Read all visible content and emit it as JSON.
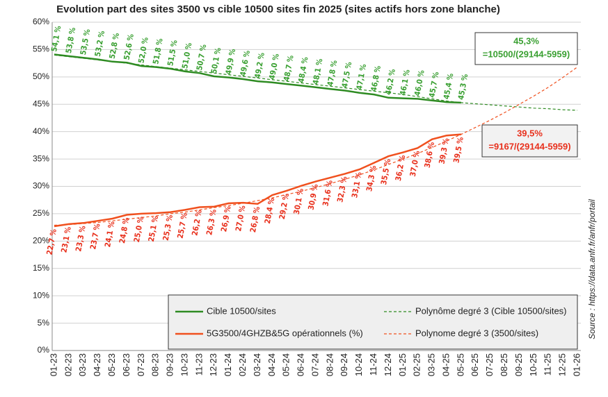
{
  "chart_data": {
    "type": "line",
    "title": "Evolution part des sites 3500 vs cible 10500 sites fin 2025 (sites actifs hors zone blanche)",
    "categories": [
      "01-23",
      "02-23",
      "03-23",
      "04-23",
      "05-23",
      "06-23",
      "07-23",
      "08-23",
      "09-23",
      "10-23",
      "11-23",
      "12-23",
      "01-24",
      "02-24",
      "03-24",
      "04-24",
      "05-24",
      "06-24",
      "07-24",
      "08-24",
      "09-24",
      "10-24",
      "11-24",
      "12-24",
      "01-25",
      "02-25",
      "03-25",
      "04-25",
      "05-25",
      "06-25",
      "07-25",
      "08-25",
      "09-25",
      "10-25",
      "11-25",
      "12-25",
      "01-26"
    ],
    "ylim": [
      0,
      60
    ],
    "yticks": [
      {
        "value": 0,
        "label": "0%"
      },
      {
        "value": 5,
        "label": "5%"
      },
      {
        "value": 10,
        "label": "10%"
      },
      {
        "value": 15,
        "label": "15%"
      },
      {
        "value": 20,
        "label": "20%"
      },
      {
        "value": 25,
        "label": "25%"
      },
      {
        "value": 30,
        "label": "30%"
      },
      {
        "value": 35,
        "label": "35%"
      },
      {
        "value": 40,
        "label": "40%"
      },
      {
        "value": 45,
        "label": "45%"
      },
      {
        "value": 50,
        "label": "50%"
      },
      {
        "value": 55,
        "label": "55%"
      },
      {
        "value": 60,
        "label": "60%"
      }
    ],
    "grid": true,
    "legend": "lower right",
    "series": [
      {
        "name": "Cible 10500/sites",
        "color": "#2e8b22",
        "label_color": "#3aa032",
        "dashed": false,
        "label_side": "above",
        "values": [
          54.1,
          53.8,
          53.5,
          53.2,
          52.8,
          52.6,
          52.0,
          51.8,
          51.5,
          51.0,
          50.7,
          50.1,
          49.9,
          49.6,
          49.2,
          49.0,
          48.7,
          48.4,
          48.1,
          47.8,
          47.5,
          47.1,
          46.8,
          46.2,
          46.1,
          46.0,
          45.7,
          45.4,
          45.3,
          null,
          null,
          null,
          null,
          null,
          null,
          null,
          null
        ],
        "value_labels": [
          "54,1 %",
          "53,8 %",
          "53,5 %",
          "53,2 %",
          "52,8 %",
          "52,6 %",
          "52,0 %",
          "51,8 %",
          "51,5 %",
          "51,0 %",
          "50,7 %",
          "50,1 %",
          "49,9 %",
          "49,6 %",
          "49,2 %",
          "49,0 %",
          "48,7 %",
          "48,4 %",
          "48,1 %",
          "47,8 %",
          "47,5 %",
          "47,1 %",
          "46,8 %",
          "46,2 %",
          "46,1 %",
          "46,0 %",
          "45,7 %",
          "45,4 %",
          "45,3 %",
          null,
          null,
          null,
          null,
          null,
          null,
          null,
          null
        ]
      },
      {
        "name": "5G3500/4GHZB&5G opérationnels (%)",
        "color": "#f0501e",
        "label_color": "#e8301c",
        "dashed": false,
        "label_side": "below",
        "values": [
          22.7,
          23.1,
          23.3,
          23.7,
          24.1,
          24.8,
          25.0,
          25.1,
          25.3,
          25.7,
          26.2,
          26.3,
          26.9,
          27.0,
          26.8,
          28.4,
          29.2,
          30.1,
          30.9,
          31.6,
          32.3,
          33.1,
          34.3,
          35.5,
          36.2,
          37.0,
          38.6,
          39.3,
          39.5,
          null,
          null,
          null,
          null,
          null,
          null,
          null,
          null
        ],
        "value_labels": [
          "22,7 %",
          "23,1 %",
          "23,3 %",
          "23,7 %",
          "24,1 %",
          "24,8 %",
          "25,0 %",
          "25,1 %",
          "25,3 %",
          "25,7 %",
          "26,2 %",
          "26,3 %",
          "26,9 %",
          "27,0 %",
          "26,8 %",
          "28,4 %",
          "29,2 %",
          "30,1 %",
          "30,9 %",
          "31,6 %",
          "32,3 %",
          "33,1 %",
          "34,3 %",
          "35,5 %",
          "36,2 %",
          "37,0 %",
          "38,6 %",
          "39,3 %",
          "39,5 %",
          null,
          null,
          null,
          null,
          null,
          null,
          null,
          null
        ]
      },
      {
        "name": "Polynôme degré 3 (Cible 10500/sites)",
        "color": "#2e8b22",
        "dashed": true,
        "values": [
          54.0,
          53.7,
          53.4,
          53.1,
          52.8,
          52.5,
          52.2,
          51.9,
          51.6,
          51.3,
          51.0,
          50.7,
          50.4,
          50.1,
          49.8,
          49.5,
          49.2,
          48.9,
          48.6,
          48.3,
          48.0,
          47.7,
          47.4,
          47.1,
          46.8,
          46.4,
          46.0,
          45.6,
          45.3,
          45.1,
          44.9,
          44.7,
          44.5,
          44.3,
          44.2,
          44.0,
          43.9
        ]
      },
      {
        "name": "Polynome degré 3 (3500/sites)",
        "color": "#f0501e",
        "dashed": true,
        "values": [
          22.9,
          23.0,
          23.2,
          23.4,
          23.7,
          24.0,
          24.3,
          24.6,
          25.0,
          25.3,
          25.7,
          26.1,
          26.5,
          26.9,
          27.4,
          27.9,
          28.5,
          29.1,
          29.8,
          30.5,
          31.3,
          32.1,
          33.0,
          34.0,
          35.0,
          36.0,
          37.1,
          38.3,
          39.5,
          40.8,
          42.1,
          43.5,
          45.0,
          46.5,
          48.1,
          49.9,
          51.8
        ]
      }
    ],
    "annotations": [
      {
        "value_label": "45,3%",
        "formula": "=10500/(29144-5959)",
        "color": "#3aa032",
        "background": "#ffffff"
      },
      {
        "value_label": "39,5%",
        "formula": "=9167/(29144-5959)",
        "color": "#e8301c",
        "background": "#f2f2f2"
      }
    ],
    "source": "Source : https://data.anfr.fr/anfr/portail"
  }
}
